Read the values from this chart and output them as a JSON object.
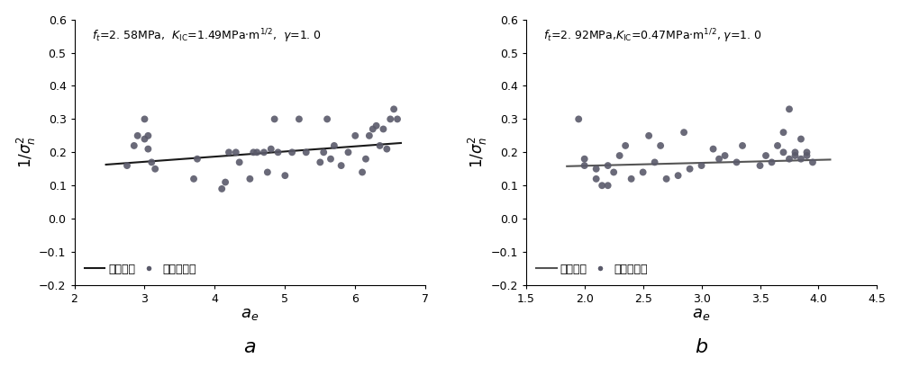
{
  "panel_a": {
    "title_parts": [
      "f",
      "t",
      "=2. 58MPa,  ",
      "K",
      "IC",
      "=1.49MPa•m",
      "1/2",
      ",  γ=1. 0"
    ],
    "xlabel": "a",
    "xlabel_sub": "e",
    "ylabel_main": "1/",
    "ylabel_sigma": "σ",
    "ylabel_n2": "n",
    "xlim": [
      2,
      7
    ],
    "ylim": [
      -0.2,
      0.6
    ],
    "xticks": [
      2,
      3,
      4,
      5,
      6,
      7
    ],
    "yticks": [
      -0.2,
      -0.1,
      0.0,
      0.1,
      0.2,
      0.3,
      0.4,
      0.5,
      0.6
    ],
    "line_x": [
      2.45,
      6.65
    ],
    "line_y": [
      0.163,
      0.228
    ],
    "scatter_x": [
      2.75,
      2.85,
      2.9,
      3.0,
      3.0,
      3.05,
      3.05,
      3.1,
      3.15,
      3.7,
      3.75,
      4.1,
      4.15,
      4.2,
      4.3,
      4.35,
      4.5,
      4.55,
      4.6,
      4.7,
      4.75,
      4.8,
      4.85,
      4.9,
      5.0,
      5.1,
      5.2,
      5.3,
      5.5,
      5.55,
      5.6,
      5.65,
      5.7,
      5.8,
      5.9,
      6.0,
      6.1,
      6.15,
      6.2,
      6.25,
      6.3,
      6.35,
      6.4,
      6.45,
      6.5,
      6.55,
      6.6
    ],
    "scatter_y": [
      0.16,
      0.22,
      0.25,
      0.24,
      0.3,
      0.21,
      0.25,
      0.17,
      0.15,
      0.12,
      0.18,
      0.09,
      0.11,
      0.2,
      0.2,
      0.17,
      0.12,
      0.2,
      0.2,
      0.2,
      0.14,
      0.21,
      0.3,
      0.2,
      0.13,
      0.2,
      0.3,
      0.2,
      0.17,
      0.2,
      0.3,
      0.18,
      0.22,
      0.16,
      0.2,
      0.25,
      0.14,
      0.18,
      0.25,
      0.27,
      0.28,
      0.22,
      0.27,
      0.21,
      0.3,
      0.33,
      0.3
    ],
    "label": "a",
    "line_color": "#1a1a1a",
    "scatter_color": "#5a5a6a"
  },
  "panel_b": {
    "title_parts": [
      "f",
      "t",
      "=2. 92MPa,",
      "K",
      "IC",
      "=0.47MPa•m",
      "1/2",
      ", γ=1. 0"
    ],
    "xlabel": "a",
    "xlabel_sub": "e",
    "ylabel_main": "1/",
    "ylabel_sigma": "σ",
    "ylabel_n2": "n",
    "xlim": [
      1.5,
      4.5
    ],
    "ylim": [
      -0.2,
      0.6
    ],
    "xticks": [
      1.5,
      2.0,
      2.5,
      3.0,
      3.5,
      4.0,
      4.5
    ],
    "yticks": [
      -0.2,
      -0.1,
      0.0,
      0.1,
      0.2,
      0.3,
      0.4,
      0.5,
      0.6
    ],
    "line_x": [
      1.85,
      4.1
    ],
    "line_y": [
      0.158,
      0.178
    ],
    "scatter_x": [
      1.95,
      2.0,
      2.0,
      2.1,
      2.1,
      2.15,
      2.2,
      2.2,
      2.25,
      2.3,
      2.35,
      2.4,
      2.5,
      2.55,
      2.6,
      2.65,
      2.7,
      2.8,
      2.85,
      2.9,
      3.0,
      3.1,
      3.15,
      3.2,
      3.3,
      3.35,
      3.5,
      3.55,
      3.6,
      3.65,
      3.7,
      3.7,
      3.75,
      3.75,
      3.8,
      3.8,
      3.85,
      3.85,
      3.9,
      3.9,
      3.95
    ],
    "scatter_y": [
      0.3,
      0.18,
      0.16,
      0.12,
      0.15,
      0.1,
      0.1,
      0.16,
      0.14,
      0.19,
      0.22,
      0.12,
      0.14,
      0.25,
      0.17,
      0.22,
      0.12,
      0.13,
      0.26,
      0.15,
      0.16,
      0.21,
      0.18,
      0.19,
      0.17,
      0.22,
      0.16,
      0.19,
      0.17,
      0.22,
      0.2,
      0.26,
      0.18,
      0.33,
      0.2,
      0.19,
      0.18,
      0.24,
      0.19,
      0.2,
      0.17
    ],
    "label": "b",
    "line_color": "#555555",
    "scatter_color": "#5a5a6a"
  },
  "legend_line_label": "回归曲线",
  "legend_scatter_label": "试验数据点",
  "bg_color": "#ffffff",
  "figure_width": 10.0,
  "figure_height": 4.18,
  "dpi": 100
}
